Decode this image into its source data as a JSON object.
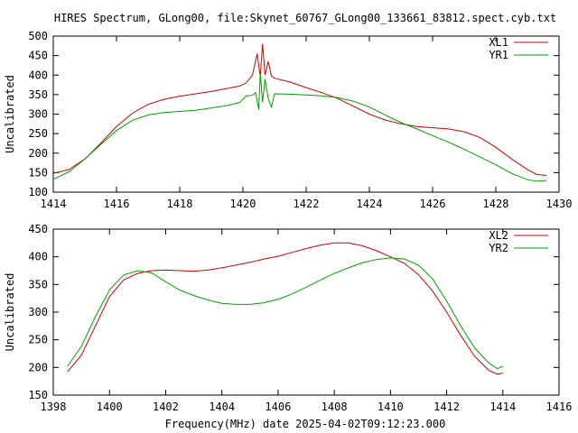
{
  "title": "HIRES Spectrum, GLong00, file:Skynet_60767_GLong00_133661_83812.spect.cyb.txt",
  "xlabel": "Frequency(MHz) date 2025-04-02T09:12:23.000",
  "colors": {
    "red": "#cc0000",
    "green": "#00a000"
  },
  "chart_data": [
    {
      "type": "line",
      "ylabel": "Uncalibrated",
      "xlim": [
        1414,
        1430
      ],
      "ylim": [
        100,
        500
      ],
      "xticks": [
        1414,
        1416,
        1418,
        1420,
        1422,
        1424,
        1426,
        1428,
        1430
      ],
      "yticks": [
        100,
        150,
        200,
        250,
        300,
        350,
        400,
        450,
        500
      ],
      "legend": "top-right",
      "series": [
        {
          "name": "XL1",
          "color": "#cc0000",
          "points": [
            [
              1414.0,
              148
            ],
            [
              1414.5,
              158
            ],
            [
              1415.0,
              185
            ],
            [
              1415.5,
              225
            ],
            [
              1416.0,
              268
            ],
            [
              1416.5,
              302
            ],
            [
              1417.0,
              325
            ],
            [
              1417.5,
              338
            ],
            [
              1418.0,
              346
            ],
            [
              1418.5,
              352
            ],
            [
              1419.0,
              358
            ],
            [
              1419.5,
              366
            ],
            [
              1419.9,
              372
            ],
            [
              1420.1,
              380
            ],
            [
              1420.3,
              400
            ],
            [
              1420.45,
              455
            ],
            [
              1420.55,
              395
            ],
            [
              1420.62,
              480
            ],
            [
              1420.7,
              400
            ],
            [
              1420.8,
              435
            ],
            [
              1420.9,
              398
            ],
            [
              1421.0,
              392
            ],
            [
              1421.5,
              382
            ],
            [
              1422.0,
              368
            ],
            [
              1422.5,
              355
            ],
            [
              1423.0,
              340
            ],
            [
              1423.5,
              320
            ],
            [
              1424.0,
              300
            ],
            [
              1424.5,
              285
            ],
            [
              1425.0,
              275
            ],
            [
              1425.5,
              268
            ],
            [
              1426.0,
              265
            ],
            [
              1426.5,
              262
            ],
            [
              1427.0,
              255
            ],
            [
              1427.5,
              240
            ],
            [
              1428.0,
              215
            ],
            [
              1428.5,
              185
            ],
            [
              1429.0,
              158
            ],
            [
              1429.3,
              145
            ],
            [
              1429.6,
              143
            ]
          ]
        },
        {
          "name": "YR1",
          "color": "#00a000",
          "points": [
            [
              1414.0,
              133
            ],
            [
              1414.5,
              152
            ],
            [
              1415.0,
              185
            ],
            [
              1415.5,
              222
            ],
            [
              1416.0,
              258
            ],
            [
              1416.5,
              284
            ],
            [
              1417.0,
              298
            ],
            [
              1417.5,
              304
            ],
            [
              1418.0,
              307
            ],
            [
              1418.5,
              310
            ],
            [
              1419.0,
              316
            ],
            [
              1419.5,
              322
            ],
            [
              1419.9,
              330
            ],
            [
              1420.1,
              347
            ],
            [
              1420.3,
              348
            ],
            [
              1420.4,
              355
            ],
            [
              1420.5,
              312
            ],
            [
              1420.55,
              405
            ],
            [
              1420.62,
              330
            ],
            [
              1420.7,
              390
            ],
            [
              1420.8,
              340
            ],
            [
              1420.9,
              318
            ],
            [
              1421.0,
              352
            ],
            [
              1421.5,
              351
            ],
            [
              1422.0,
              349
            ],
            [
              1422.5,
              347
            ],
            [
              1423.0,
              342
            ],
            [
              1423.5,
              333
            ],
            [
              1424.0,
              318
            ],
            [
              1424.5,
              298
            ],
            [
              1425.0,
              278
            ],
            [
              1425.5,
              262
            ],
            [
              1426.0,
              245
            ],
            [
              1426.5,
              228
            ],
            [
              1427.0,
              210
            ],
            [
              1427.5,
              190
            ],
            [
              1428.0,
              170
            ],
            [
              1428.5,
              148
            ],
            [
              1429.0,
              132
            ],
            [
              1429.3,
              128
            ],
            [
              1429.6,
              130
            ]
          ]
        }
      ]
    },
    {
      "type": "line",
      "ylabel": "Uncalibrated",
      "xlim": [
        1398,
        1416
      ],
      "ylim": [
        150,
        450
      ],
      "xticks": [
        1398,
        1400,
        1402,
        1404,
        1406,
        1408,
        1410,
        1412,
        1414,
        1416
      ],
      "yticks": [
        150,
        200,
        250,
        300,
        350,
        400,
        450
      ],
      "legend": "top-right",
      "series": [
        {
          "name": "XL2",
          "color": "#cc0000",
          "points": [
            [
              1398.5,
              192
            ],
            [
              1399.0,
              222
            ],
            [
              1399.5,
              275
            ],
            [
              1400.0,
              328
            ],
            [
              1400.5,
              358
            ],
            [
              1401.0,
              370
            ],
            [
              1401.5,
              375
            ],
            [
              1402.0,
              376
            ],
            [
              1402.5,
              375
            ],
            [
              1403.0,
              374
            ],
            [
              1403.5,
              376
            ],
            [
              1404.0,
              380
            ],
            [
              1404.5,
              385
            ],
            [
              1405.0,
              390
            ],
            [
              1405.5,
              396
            ],
            [
              1406.0,
              401
            ],
            [
              1406.5,
              408
            ],
            [
              1407.0,
              415
            ],
            [
              1407.5,
              421
            ],
            [
              1408.0,
              425
            ],
            [
              1408.5,
              425
            ],
            [
              1409.0,
              420
            ],
            [
              1409.5,
              411
            ],
            [
              1410.0,
              400
            ],
            [
              1410.5,
              388
            ],
            [
              1411.0,
              368
            ],
            [
              1411.5,
              338
            ],
            [
              1412.0,
              300
            ],
            [
              1412.5,
              258
            ],
            [
              1413.0,
              220
            ],
            [
              1413.5,
              195
            ],
            [
              1413.8,
              188
            ],
            [
              1414.0,
              190
            ]
          ]
        },
        {
          "name": "YR2",
          "color": "#00a000",
          "points": [
            [
              1398.5,
              202
            ],
            [
              1399.0,
              238
            ],
            [
              1399.5,
              292
            ],
            [
              1400.0,
              340
            ],
            [
              1400.5,
              367
            ],
            [
              1401.0,
              375
            ],
            [
              1401.5,
              371
            ],
            [
              1402.0,
              355
            ],
            [
              1402.5,
              340
            ],
            [
              1403.0,
              330
            ],
            [
              1403.5,
              322
            ],
            [
              1404.0,
              316
            ],
            [
              1404.5,
              314
            ],
            [
              1405.0,
              314
            ],
            [
              1405.5,
              317
            ],
            [
              1406.0,
              323
            ],
            [
              1406.5,
              333
            ],
            [
              1407.0,
              345
            ],
            [
              1407.5,
              358
            ],
            [
              1408.0,
              370
            ],
            [
              1408.5,
              380
            ],
            [
              1409.0,
              389
            ],
            [
              1409.5,
              395
            ],
            [
              1410.0,
              398
            ],
            [
              1410.5,
              396
            ],
            [
              1411.0,
              385
            ],
            [
              1411.5,
              360
            ],
            [
              1412.0,
              320
            ],
            [
              1412.5,
              275
            ],
            [
              1413.0,
              235
            ],
            [
              1413.5,
              208
            ],
            [
              1413.8,
              198
            ],
            [
              1414.0,
              202
            ]
          ]
        }
      ]
    }
  ]
}
